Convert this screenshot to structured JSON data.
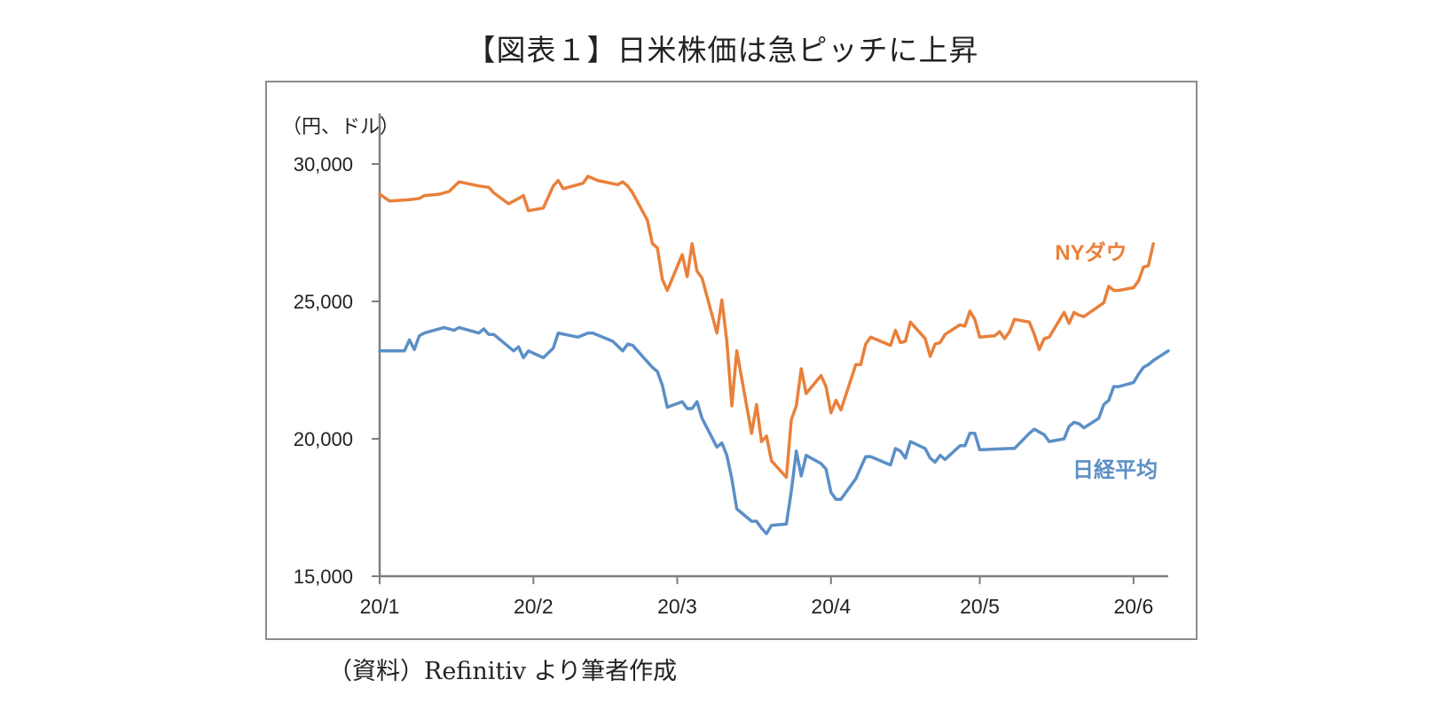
{
  "title": "【図表１】日米株価は急ピッチに上昇",
  "source_note": "（資料）Refinitiv より筆者作成",
  "colors": {
    "ny_dow": "#E9803A",
    "nikkei": "#5B8FC6",
    "axis": "#7f7f7f",
    "frame": "#8c8c8c"
  },
  "chart_data": {
    "type": "line",
    "ylabel": "（円、ドル）",
    "ylim": [
      15000,
      30000
    ],
    "yticks": [
      15000,
      20000,
      25000,
      30000
    ],
    "ytick_labels": [
      "15,000",
      "20,000",
      "25,000",
      "30,000"
    ],
    "xlim": [
      "2020-01-01",
      "2020-06-08"
    ],
    "xticks": [
      "2020-01-01",
      "2020-02-01",
      "2020-03-01",
      "2020-04-01",
      "2020-05-01",
      "2020-06-01"
    ],
    "xtick_labels": [
      "20/1",
      "20/2",
      "20/3",
      "20/4",
      "20/5",
      "20/6"
    ],
    "grid": false,
    "legend": "inline labels at right end of lines",
    "series": [
      {
        "name": "NYダウ",
        "color": "#E9803A",
        "points": [
          [
            "2020-01-01",
            28900
          ],
          [
            "2020-01-03",
            28650
          ],
          [
            "2020-01-07",
            28700
          ],
          [
            "2020-01-09",
            28750
          ],
          [
            "2020-01-10",
            28850
          ],
          [
            "2020-01-13",
            28900
          ],
          [
            "2020-01-15",
            29000
          ],
          [
            "2020-01-17",
            29350
          ],
          [
            "2020-01-21",
            29200
          ],
          [
            "2020-01-23",
            29150
          ],
          [
            "2020-01-24",
            28950
          ],
          [
            "2020-01-27",
            28550
          ],
          [
            "2020-01-29",
            28750
          ],
          [
            "2020-01-30",
            28850
          ],
          [
            "2020-01-31",
            28300
          ],
          [
            "2020-02-03",
            28400
          ],
          [
            "2020-02-05",
            29200
          ],
          [
            "2020-02-06",
            29400
          ],
          [
            "2020-02-07",
            29100
          ],
          [
            "2020-02-10",
            29250
          ],
          [
            "2020-02-11",
            29300
          ],
          [
            "2020-02-12",
            29550
          ],
          [
            "2020-02-14",
            29400
          ],
          [
            "2020-02-18",
            29250
          ],
          [
            "2020-02-19",
            29350
          ],
          [
            "2020-02-20",
            29200
          ],
          [
            "2020-02-21",
            28950
          ],
          [
            "2020-02-24",
            27950
          ],
          [
            "2020-02-25",
            27100
          ],
          [
            "2020-02-26",
            26950
          ],
          [
            "2020-02-27",
            25800
          ],
          [
            "2020-02-28",
            25400
          ],
          [
            "2020-03-02",
            26700
          ],
          [
            "2020-03-03",
            25900
          ],
          [
            "2020-03-04",
            27100
          ],
          [
            "2020-03-05",
            26100
          ],
          [
            "2020-03-06",
            25850
          ],
          [
            "2020-03-09",
            23850
          ],
          [
            "2020-03-10",
            25050
          ],
          [
            "2020-03-11",
            23550
          ],
          [
            "2020-03-12",
            21200
          ],
          [
            "2020-03-13",
            23200
          ],
          [
            "2020-03-16",
            20200
          ],
          [
            "2020-03-17",
            21250
          ],
          [
            "2020-03-18",
            19900
          ],
          [
            "2020-03-19",
            20100
          ],
          [
            "2020-03-20",
            19200
          ],
          [
            "2020-03-23",
            18600
          ],
          [
            "2020-03-24",
            20700
          ],
          [
            "2020-03-25",
            21200
          ],
          [
            "2020-03-26",
            22550
          ],
          [
            "2020-03-27",
            21650
          ],
          [
            "2020-03-30",
            22300
          ],
          [
            "2020-03-31",
            21900
          ],
          [
            "2020-04-01",
            20950
          ],
          [
            "2020-04-02",
            21400
          ],
          [
            "2020-04-03",
            21050
          ],
          [
            "2020-04-06",
            22700
          ],
          [
            "2020-04-07",
            22700
          ],
          [
            "2020-04-08",
            23450
          ],
          [
            "2020-04-09",
            23700
          ],
          [
            "2020-04-13",
            23400
          ],
          [
            "2020-04-14",
            23950
          ],
          [
            "2020-04-15",
            23500
          ],
          [
            "2020-04-16",
            23550
          ],
          [
            "2020-04-17",
            24250
          ],
          [
            "2020-04-20",
            23650
          ],
          [
            "2020-04-21",
            23000
          ],
          [
            "2020-04-22",
            23450
          ],
          [
            "2020-04-23",
            23500
          ],
          [
            "2020-04-24",
            23800
          ],
          [
            "2020-04-27",
            24150
          ],
          [
            "2020-04-28",
            24100
          ],
          [
            "2020-04-29",
            24650
          ],
          [
            "2020-04-30",
            24350
          ],
          [
            "2020-05-01",
            23700
          ],
          [
            "2020-05-04",
            23750
          ],
          [
            "2020-05-05",
            23900
          ],
          [
            "2020-05-06",
            23650
          ],
          [
            "2020-05-07",
            23900
          ],
          [
            "2020-05-08",
            24350
          ],
          [
            "2020-05-11",
            24250
          ],
          [
            "2020-05-12",
            23800
          ],
          [
            "2020-05-13",
            23250
          ],
          [
            "2020-05-14",
            23650
          ],
          [
            "2020-05-15",
            23700
          ],
          [
            "2020-05-18",
            24600
          ],
          [
            "2020-05-19",
            24200
          ],
          [
            "2020-05-20",
            24600
          ],
          [
            "2020-05-21",
            24500
          ],
          [
            "2020-05-22",
            24450
          ],
          [
            "2020-05-26",
            24950
          ],
          [
            "2020-05-27",
            25550
          ],
          [
            "2020-05-28",
            25400
          ],
          [
            "2020-05-29",
            25400
          ],
          [
            "2020-06-01",
            25500
          ],
          [
            "2020-06-02",
            25750
          ],
          [
            "2020-06-03",
            26250
          ],
          [
            "2020-06-04",
            26300
          ],
          [
            "2020-06-05",
            27100
          ]
        ]
      },
      {
        "name": "日経平均",
        "color": "#5B8FC6",
        "points": [
          [
            "2020-01-01",
            23200
          ],
          [
            "2020-01-06",
            23200
          ],
          [
            "2020-01-07",
            23600
          ],
          [
            "2020-01-08",
            23250
          ],
          [
            "2020-01-09",
            23750
          ],
          [
            "2020-01-10",
            23850
          ],
          [
            "2020-01-14",
            24050
          ],
          [
            "2020-01-16",
            23950
          ],
          [
            "2020-01-17",
            24050
          ],
          [
            "2020-01-21",
            23850
          ],
          [
            "2020-01-22",
            24000
          ],
          [
            "2020-01-23",
            23800
          ],
          [
            "2020-01-24",
            23800
          ],
          [
            "2020-01-28",
            23200
          ],
          [
            "2020-01-29",
            23350
          ],
          [
            "2020-01-30",
            22950
          ],
          [
            "2020-01-31",
            23200
          ],
          [
            "2020-02-03",
            22950
          ],
          [
            "2020-02-05",
            23300
          ],
          [
            "2020-02-06",
            23850
          ],
          [
            "2020-02-10",
            23700
          ],
          [
            "2020-02-12",
            23850
          ],
          [
            "2020-02-13",
            23850
          ],
          [
            "2020-02-17",
            23550
          ],
          [
            "2020-02-19",
            23200
          ],
          [
            "2020-02-20",
            23450
          ],
          [
            "2020-02-21",
            23400
          ],
          [
            "2020-02-25",
            22600
          ],
          [
            "2020-02-26",
            22450
          ],
          [
            "2020-02-27",
            21950
          ],
          [
            "2020-02-28",
            21150
          ],
          [
            "2020-03-02",
            21350
          ],
          [
            "2020-03-03",
            21100
          ],
          [
            "2020-03-04",
            21100
          ],
          [
            "2020-03-05",
            21350
          ],
          [
            "2020-03-06",
            20750
          ],
          [
            "2020-03-09",
            19700
          ],
          [
            "2020-03-10",
            19850
          ],
          [
            "2020-03-11",
            19400
          ],
          [
            "2020-03-12",
            18550
          ],
          [
            "2020-03-13",
            17450
          ],
          [
            "2020-03-16",
            17000
          ],
          [
            "2020-03-17",
            17000
          ],
          [
            "2020-03-18",
            16750
          ],
          [
            "2020-03-19",
            16550
          ],
          [
            "2020-03-20",
            16850
          ],
          [
            "2020-03-23",
            16900
          ],
          [
            "2020-03-24",
            18100
          ],
          [
            "2020-03-25",
            19550
          ],
          [
            "2020-03-26",
            18650
          ],
          [
            "2020-03-27",
            19400
          ],
          [
            "2020-03-30",
            19100
          ],
          [
            "2020-03-31",
            18900
          ],
          [
            "2020-04-01",
            18050
          ],
          [
            "2020-04-02",
            17800
          ],
          [
            "2020-04-03",
            17800
          ],
          [
            "2020-04-06",
            18550
          ],
          [
            "2020-04-07",
            18950
          ],
          [
            "2020-04-08",
            19350
          ],
          [
            "2020-04-09",
            19350
          ],
          [
            "2020-04-13",
            19050
          ],
          [
            "2020-04-14",
            19650
          ],
          [
            "2020-04-15",
            19550
          ],
          [
            "2020-04-16",
            19300
          ],
          [
            "2020-04-17",
            19900
          ],
          [
            "2020-04-20",
            19650
          ],
          [
            "2020-04-21",
            19300
          ],
          [
            "2020-04-22",
            19150
          ],
          [
            "2020-04-23",
            19400
          ],
          [
            "2020-04-24",
            19250
          ],
          [
            "2020-04-27",
            19750
          ],
          [
            "2020-04-28",
            19750
          ],
          [
            "2020-04-29",
            20200
          ],
          [
            "2020-04-30",
            20200
          ],
          [
            "2020-05-01",
            19600
          ],
          [
            "2020-05-07",
            19650
          ],
          [
            "2020-05-08",
            19650
          ],
          [
            "2020-05-11",
            20200
          ],
          [
            "2020-05-12",
            20350
          ],
          [
            "2020-05-13",
            20250
          ],
          [
            "2020-05-14",
            20150
          ],
          [
            "2020-05-15",
            19900
          ],
          [
            "2020-05-18",
            20000
          ],
          [
            "2020-05-19",
            20450
          ],
          [
            "2020-05-20",
            20600
          ],
          [
            "2020-05-21",
            20550
          ],
          [
            "2020-05-22",
            20400
          ],
          [
            "2020-05-25",
            20750
          ],
          [
            "2020-05-26",
            21250
          ],
          [
            "2020-05-27",
            21400
          ],
          [
            "2020-05-28",
            21900
          ],
          [
            "2020-05-29",
            21900
          ],
          [
            "2020-06-01",
            22050
          ],
          [
            "2020-06-02",
            22350
          ],
          [
            "2020-06-03",
            22600
          ],
          [
            "2020-06-04",
            22700
          ],
          [
            "2020-06-05",
            22850
          ],
          [
            "2020-06-08",
            23200
          ]
        ]
      }
    ]
  }
}
